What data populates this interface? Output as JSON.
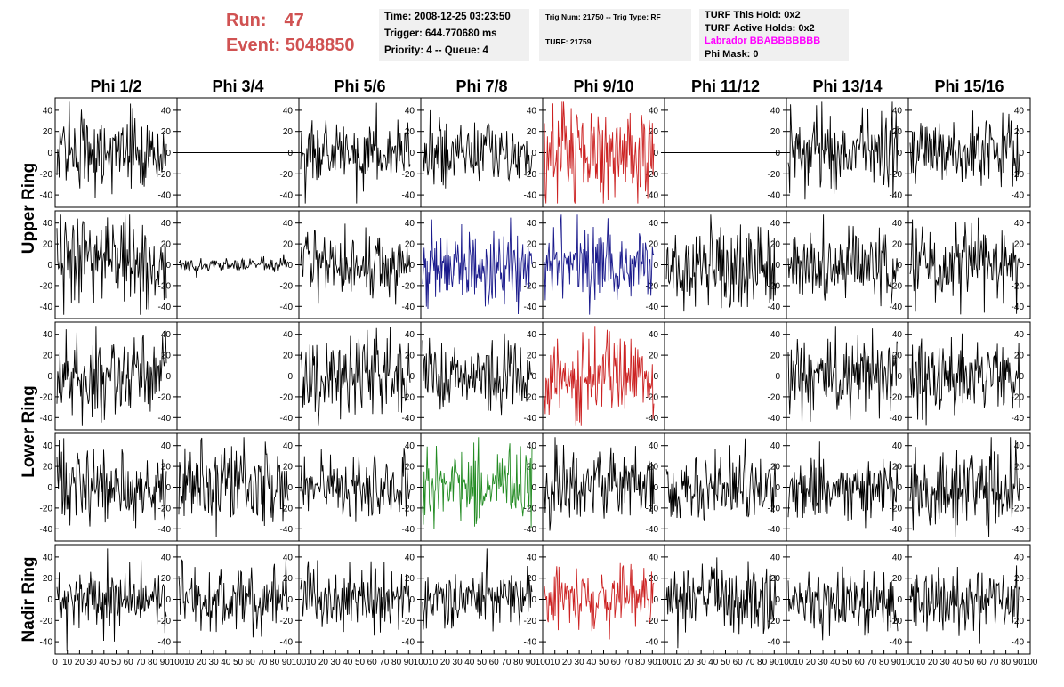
{
  "header": {
    "run_label": "Run:",
    "run_value": "47",
    "event_label": "Event:",
    "event_value": "5048850",
    "time": "Time: 2008-12-25 03:23:50",
    "trigger": "Trigger: 644.770680 ms",
    "priority": "Priority: 4 -- Queue: 4",
    "trig_num": "Trig Num: 21750 -- Trig Type: RF",
    "turf": "TURF: 21759",
    "turf_this_hold": "TURF This Hold: 0x2",
    "turf_active_holds": "TURF Active Holds: 0x2",
    "labrador": "Labrador BBABBBBBBB",
    "phi_mask": "Phi Mask: 0",
    "labrador_color": "#ff00ff",
    "run_color": "#d05252"
  },
  "chart_data": {
    "type": "line",
    "columns": [
      "Phi 1/2",
      "Phi 3/4",
      "Phi 5/6",
      "Phi 7/8",
      "Phi 9/10",
      "Phi 11/12",
      "Phi 13/14",
      "Phi 15/16"
    ],
    "row_groups": [
      {
        "label": "Upper Ring",
        "rows": [
          0,
          1
        ]
      },
      {
        "label": "Lower Ring",
        "rows": [
          2,
          3
        ]
      },
      {
        "label": "Nadir Ring",
        "rows": [
          4
        ]
      }
    ],
    "xlim": [
      0,
      100
    ],
    "ylim": [
      -50,
      50
    ],
    "x_ticks": [
      "0",
      "10",
      "20",
      "30",
      "40",
      "50",
      "60",
      "70",
      "80",
      "90",
      "100"
    ],
    "y_ticks": [
      "40",
      "20",
      "0",
      "-20",
      "-40"
    ],
    "colors": {
      "black": "#000000",
      "red": "#cc2222",
      "blue": "#1a1a8c",
      "green": "#228b22"
    },
    "panels": [
      [
        "black:22",
        "flat:0",
        "black:20",
        "black:18",
        "red:28",
        "flat:0",
        "black:22",
        "black:20"
      ],
      [
        "black:26",
        "black:4",
        "black:18",
        "blue:24",
        "blue:24",
        "black:24",
        "black:20",
        "black:22"
      ],
      [
        "black:24",
        "flat:0",
        "black:24",
        "black:22",
        "red:26",
        "flat:0",
        "black:22",
        "black:22"
      ],
      [
        "black:24",
        "black:24",
        "black:20",
        "green:20",
        "black:18",
        "black:20",
        "black:20",
        "black:24"
      ],
      [
        "black:20",
        "black:18",
        "black:18",
        "black:16",
        "red:18",
        "black:18",
        "black:20",
        "black:18"
      ]
    ]
  }
}
